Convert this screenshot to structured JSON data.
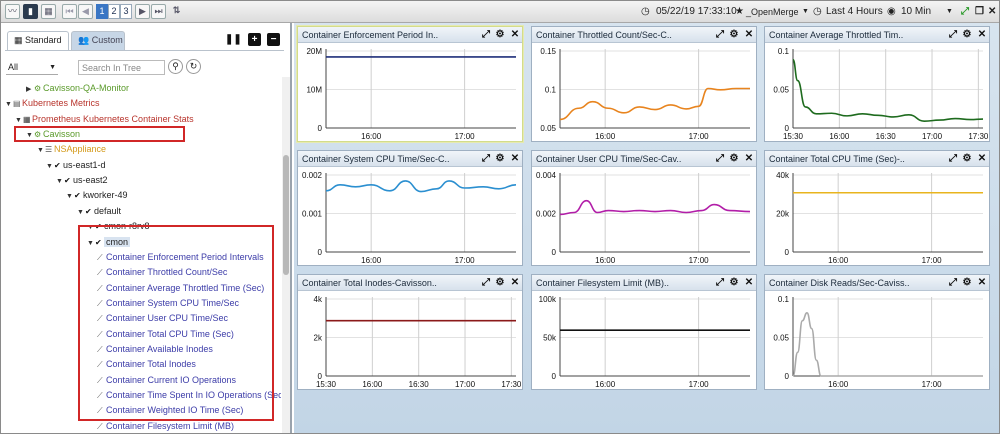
{
  "toolbar": {
    "pages": [
      "1",
      "2",
      "3"
    ],
    "active_page": "1",
    "timestamp": "05/22/19 17:33:10",
    "favorite_label": "_OpenMerge",
    "range_label": "Last 4 Hours",
    "interval_label": "10 Min",
    "icons": [
      "line-chart-icon",
      "bar-chart-icon",
      "grid-icon",
      "first-page-icon",
      "prev-page-icon",
      "next-page-icon",
      "last-page-icon",
      "sort-icon",
      "clock-icon",
      "star-icon",
      "clock-icon",
      "eye-icon",
      "expand-icon",
      "restore-icon",
      "close-icon"
    ]
  },
  "left": {
    "tabs": [
      {
        "label": "Standard",
        "icon": "table-icon"
      },
      {
        "label": "Custom",
        "icon": "users-icon"
      }
    ],
    "filter_value": "All",
    "search_placeholder": "Search In Tree",
    "tree": [
      {
        "label": "Cavisson-QA-Monitor",
        "color": "green",
        "depth": 3,
        "arrow": "right",
        "icon": "gear-cluster-icon"
      },
      {
        "label": "Kubernetes Metrics",
        "color": "red",
        "depth": 1,
        "arrow": "down",
        "icon": "folder-icon"
      },
      {
        "label": "Prometheus Kubernetes Container Stats",
        "color": "red",
        "depth": 2,
        "arrow": "down",
        "icon": "grid-icon"
      },
      {
        "label": "Cavisson",
        "color": "green",
        "depth": 3,
        "arrow": "down",
        "icon": "gear-cluster-icon"
      },
      {
        "label": "NSAppliance",
        "color": "orange",
        "depth": 4,
        "arrow": "down",
        "icon": "list-icon"
      },
      {
        "label": "us-east1-d",
        "color": "dark",
        "depth": 5,
        "arrow": "down",
        "icon": "check-icon"
      },
      {
        "label": "us-east2",
        "color": "dark",
        "depth": 6,
        "arrow": "down",
        "icon": "check-icon"
      },
      {
        "label": "kworker-49",
        "color": "dark",
        "depth": 7,
        "arrow": "down",
        "icon": "check-icon"
      },
      {
        "label": "default",
        "color": "dark",
        "depth": 8,
        "arrow": "down",
        "icon": "check-icon"
      },
      {
        "label": "cmon-r8rv8",
        "color": "dark",
        "depth": 9,
        "arrow": "down",
        "icon": "check-icon"
      },
      {
        "label": "cmon",
        "color": "dark",
        "depth": 10,
        "arrow": "down",
        "icon": "check-icon"
      },
      {
        "label": "Container Enforcement Period Intervals",
        "color": "blue",
        "depth": 11,
        "icon": "line-chart-icon"
      },
      {
        "label": "Container Throttled Count/Sec",
        "color": "blue",
        "depth": 11,
        "icon": "line-chart-icon"
      },
      {
        "label": "Container Average Throttled Time (Sec)",
        "color": "blue",
        "depth": 11,
        "icon": "line-chart-icon"
      },
      {
        "label": "Container System CPU Time/Sec",
        "color": "blue",
        "depth": 11,
        "icon": "line-chart-icon"
      },
      {
        "label": "Container User CPU Time/Sec",
        "color": "blue",
        "depth": 11,
        "icon": "line-chart-icon"
      },
      {
        "label": "Container Total CPU Time (Sec)",
        "color": "blue",
        "depth": 11,
        "icon": "line-chart-icon"
      },
      {
        "label": "Container Available Inodes",
        "color": "blue",
        "depth": 11,
        "icon": "line-chart-icon"
      },
      {
        "label": "Container Total Inodes",
        "color": "blue",
        "depth": 11,
        "icon": "line-chart-icon"
      },
      {
        "label": "Container Current IO Operations",
        "color": "blue",
        "depth": 11,
        "icon": "line-chart-icon"
      },
      {
        "label": "Container Time Spent In IO Operations (Sec)",
        "color": "blue",
        "depth": 11,
        "icon": "line-chart-icon"
      },
      {
        "label": "Container Weighted IO Time (Sec)",
        "color": "blue",
        "depth": 11,
        "icon": "line-chart-icon"
      },
      {
        "label": "Container Filesystem Limit (MB)",
        "color": "blue",
        "depth": 11,
        "icon": "line-chart-icon"
      }
    ]
  },
  "chart_data": [
    {
      "type": "line",
      "title": "Container Enforcement Period In..",
      "yticks": [
        "20M",
        "10M",
        "0"
      ],
      "ylim": [
        0,
        20000000
      ],
      "xticks": [
        "16:00",
        "17:00"
      ],
      "xtick_times": [
        960,
        1020
      ],
      "xlim": [
        931,
        1053
      ],
      "series": [
        {
          "color": "#1f2f7a",
          "x": [
            931,
            1053
          ],
          "values": [
            18000000,
            18000000
          ]
        }
      ]
    },
    {
      "type": "line",
      "title": "Container Throttled Count/Sec-C..",
      "yticks": [
        "0.15",
        "0.1",
        "0.05"
      ],
      "ylim": [
        0.04,
        0.16
      ],
      "xticks": [
        "16:00",
        "17:00"
      ],
      "xtick_times": [
        960,
        1020
      ],
      "xlim": [
        931,
        1053
      ],
      "series": [
        {
          "color": "#e8841e",
          "x": [
            931,
            943,
            952,
            962,
            972,
            982,
            992,
            1002,
            1012,
            1020,
            1026,
            1034,
            1044,
            1053
          ],
          "values": [
            0.053,
            0.07,
            0.08,
            0.07,
            0.063,
            0.072,
            0.068,
            0.075,
            0.069,
            0.073,
            0.1,
            0.098,
            0.1,
            0.1
          ]
        }
      ]
    },
    {
      "type": "line",
      "title": "Container Average Throttled Tim..",
      "yticks": [
        "0.1",
        "0.05",
        "0"
      ],
      "ylim": [
        0,
        0.15
      ],
      "xticks": [
        "15:30",
        "16:00",
        "16:30",
        "17:00",
        "17:30"
      ],
      "xtick_times": [
        930,
        960,
        990,
        1020,
        1050
      ],
      "xlim": [
        930,
        1053
      ],
      "series": [
        {
          "color": "#1e6b1e",
          "x": [
            930,
            933,
            938,
            945,
            955,
            965,
            975,
            985,
            995,
            1005,
            1015,
            1025,
            1035,
            1045,
            1053
          ],
          "values": [
            0.13,
            0.09,
            0.04,
            0.027,
            0.028,
            0.023,
            0.027,
            0.024,
            0.021,
            0.025,
            0.013,
            0.015,
            0.018,
            0.016,
            0.017
          ]
        }
      ]
    },
    {
      "type": "line",
      "title": "Container System CPU Time/Sec-C..",
      "yticks": [
        "0.002",
        "0.001",
        "0"
      ],
      "ylim": [
        0,
        0.002
      ],
      "xticks": [
        "16:00",
        "17:00"
      ],
      "xtick_times": [
        960,
        1020
      ],
      "xlim": [
        931,
        1053
      ],
      "series": [
        {
          "color": "#2b8fd0",
          "x": [
            931,
            940,
            950,
            960,
            972,
            982,
            992,
            1002,
            1010,
            1020,
            1032,
            1042,
            1053
          ],
          "values": [
            0.00155,
            0.0017,
            0.00165,
            0.0017,
            0.00155,
            0.0018,
            0.00153,
            0.0016,
            0.0018,
            0.00162,
            0.00165,
            0.0016,
            0.0017
          ]
        }
      ]
    },
    {
      "type": "line",
      "title": "Container User CPU Time/Sec-Cav..",
      "yticks": [
        "0.004",
        "0.002",
        "0"
      ],
      "ylim": [
        0,
        0.004
      ],
      "xticks": [
        "16:00",
        "17:00"
      ],
      "xtick_times": [
        960,
        1020
      ],
      "xlim": [
        931,
        1053
      ],
      "series": [
        {
          "color": "#b21ea8",
          "x": [
            931,
            940,
            948,
            955,
            962,
            972,
            982,
            992,
            1002,
            1012,
            1022,
            1030,
            1040,
            1053
          ],
          "values": [
            0.0019,
            0.002,
            0.0026,
            0.002,
            0.0021,
            0.00205,
            0.0021,
            0.00205,
            0.0021,
            0.002,
            0.0021,
            0.0024,
            0.0021,
            0.00205
          ]
        }
      ]
    },
    {
      "type": "line",
      "title": "Container Total CPU Time (Sec)-..",
      "yticks": [
        "40k",
        "20k",
        "0"
      ],
      "ylim": [
        0,
        40000
      ],
      "xticks": [
        "16:00",
        "17:00"
      ],
      "xtick_times": [
        960,
        1020
      ],
      "xlim": [
        931,
        1053
      ],
      "series": [
        {
          "color": "#e8b41e",
          "x": [
            931,
            1053
          ],
          "values": [
            30000,
            30000
          ]
        }
      ]
    },
    {
      "type": "line",
      "title": "Container Total Inodes-Cavisson..",
      "yticks": [
        "4k",
        "2k",
        "0"
      ],
      "ylim": [
        0,
        4000
      ],
      "xticks": [
        "15:30",
        "16:00",
        "16:30",
        "17:00",
        "17:30"
      ],
      "xtick_times": [
        930,
        960,
        990,
        1020,
        1050
      ],
      "xlim": [
        930,
        1053
      ],
      "series": [
        {
          "color": "#8b1a1a",
          "x": [
            930,
            1053
          ],
          "values": [
            2800,
            2800
          ]
        }
      ]
    },
    {
      "type": "line",
      "title": "Container Filesystem Limit (MB)..",
      "yticks": [
        "100k",
        "50k",
        "0"
      ],
      "ylim": [
        0,
        100000
      ],
      "xticks": [
        "16:00",
        "17:00"
      ],
      "xtick_times": [
        960,
        1020
      ],
      "xlim": [
        931,
        1053
      ],
      "series": [
        {
          "color": "#111111",
          "x": [
            931,
            1053
          ],
          "values": [
            58000,
            58000
          ]
        }
      ]
    },
    {
      "type": "line",
      "title": "Container Disk Reads/Sec-Caviss..",
      "yticks": [
        "0.1",
        "0.05",
        "0"
      ],
      "ylim": [
        0,
        0.1
      ],
      "xticks": [
        "16:00",
        "17:00"
      ],
      "xtick_times": [
        960,
        1020
      ],
      "xlim": [
        931,
        1053
      ],
      "series": [
        {
          "color": "#aaaaaa",
          "x": [
            931,
            934,
            937,
            940,
            943,
            946,
            949,
            952,
            1053
          ],
          "values": [
            0,
            0.03,
            0.07,
            0.08,
            0.06,
            0.02,
            0,
            0,
            0
          ]
        }
      ]
    }
  ]
}
